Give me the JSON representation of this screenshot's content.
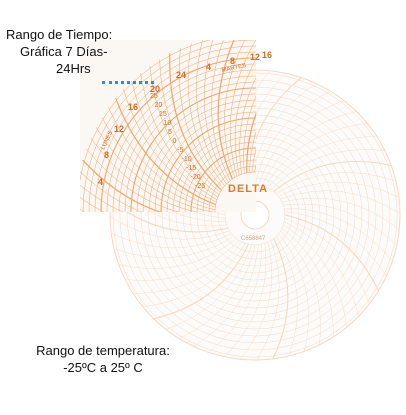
{
  "captions": {
    "time_range": {
      "line1": "Rango de Tiempo:",
      "line2": "Gráfica  7 Días-",
      "line3": "24Hrs"
    },
    "temperature_range": {
      "line1": "Rango de temperatura:",
      "line2": "-25ºC a 25º C"
    }
  },
  "disc": {
    "brand": "DELTA",
    "model_code": "C658847",
    "day_label": "MARTES",
    "day_label_2": "LUNES",
    "hour_marks": [
      "4",
      "8",
      "12",
      "16",
      "20",
      "24",
      "4",
      "8",
      "12",
      "16"
    ],
    "scale_labels": [
      "25",
      "20",
      "15",
      "10",
      "5",
      "0",
      "-5",
      "-10",
      "-15",
      "-20",
      "-25"
    ],
    "colors": {
      "grid": "#f2a56a",
      "grid_faded": "#f6d8c2",
      "label": "#d9691c",
      "leader": "#2b8fd6"
    }
  }
}
